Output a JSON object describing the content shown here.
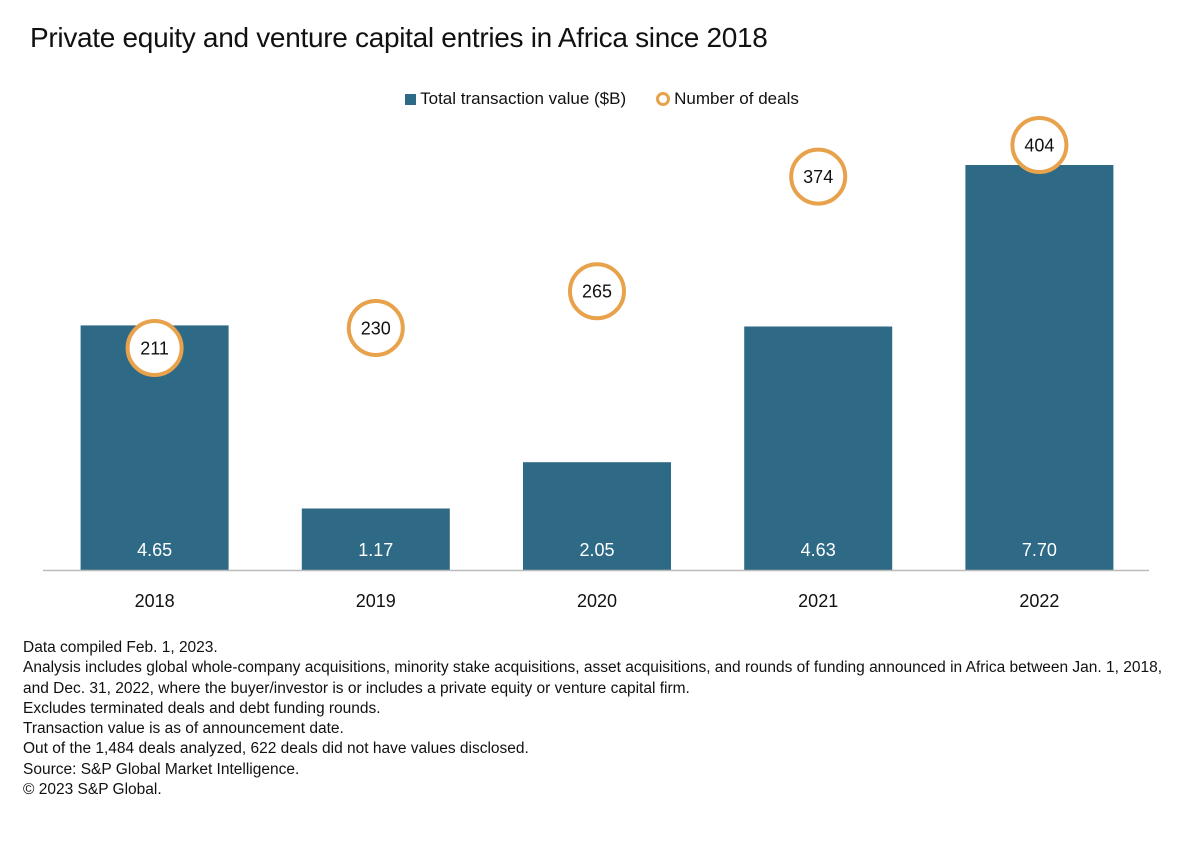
{
  "title": "Private equity and venture capital entries in Africa since 2018",
  "legend": {
    "bar_label": "Total transaction value ($B)",
    "circle_label": "Number of deals"
  },
  "colors": {
    "bar": "#2e6a85",
    "circle_stroke": "#e8a24b",
    "circle_fill": "#ffffff",
    "axis": "#bbbbbb"
  },
  "chart_data": {
    "type": "bar",
    "title": "Private equity and venture capital entries in Africa since 2018",
    "categories": [
      "2018",
      "2019",
      "2020",
      "2021",
      "2022"
    ],
    "series": [
      {
        "name": "Total transaction value ($B)",
        "type": "bar",
        "axis": "primary",
        "values": [
          4.65,
          1.17,
          2.05,
          4.63,
          7.7
        ],
        "labels": [
          "4.65",
          "1.17",
          "2.05",
          "4.63",
          "7.70"
        ]
      },
      {
        "name": "Number of deals",
        "type": "scatter",
        "axis": "secondary",
        "values": [
          211,
          230,
          265,
          374,
          404
        ],
        "labels": [
          "211",
          "230",
          "265",
          "374",
          "404"
        ]
      }
    ],
    "xlabel": "",
    "ylabel": "",
    "ylim": [
      0,
      7.7
    ],
    "y2lim": [
      0,
      404
    ],
    "grid": false,
    "legend_position": "top-center"
  },
  "notes": [
    "Data compiled Feb. 1, 2023.",
    "Analysis includes global whole-company acquisitions, minority stake acquisitions, asset acquisitions, and rounds of funding announced in Africa between Jan. 1, 2018, and Dec. 31, 2022, where the buyer/investor is or includes a private equity or venture capital firm.",
    "Excludes terminated deals and debt funding rounds.",
    "Transaction value is as of announcement date.",
    "Out of the 1,484 deals analyzed, 622 deals did not have values disclosed.",
    "Source: S&P Global Market Intelligence.",
    "© 2023 S&P Global."
  ]
}
